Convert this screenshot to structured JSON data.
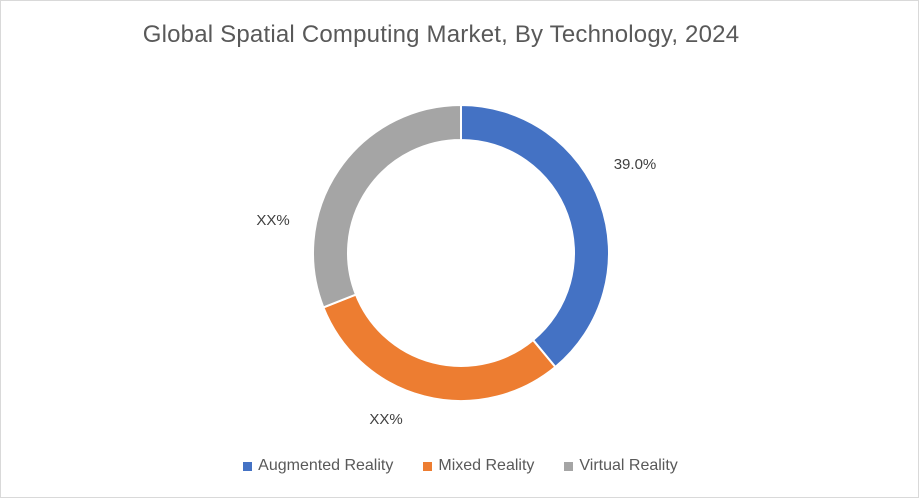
{
  "chart_data": {
    "type": "pie",
    "variant": "donut",
    "title": "Global Spatial Computing Market, By Technology, 2024",
    "categories": [
      "Augmented Reality",
      "Mixed Reality",
      "Virtual Reality"
    ],
    "values": [
      39.0,
      30.0,
      31.0
    ],
    "labels": [
      "39.0%",
      "XX%",
      "XX%"
    ],
    "colors": [
      "#4472c4",
      "#ed7d31",
      "#a5a5a5"
    ],
    "legend_position": "bottom"
  }
}
